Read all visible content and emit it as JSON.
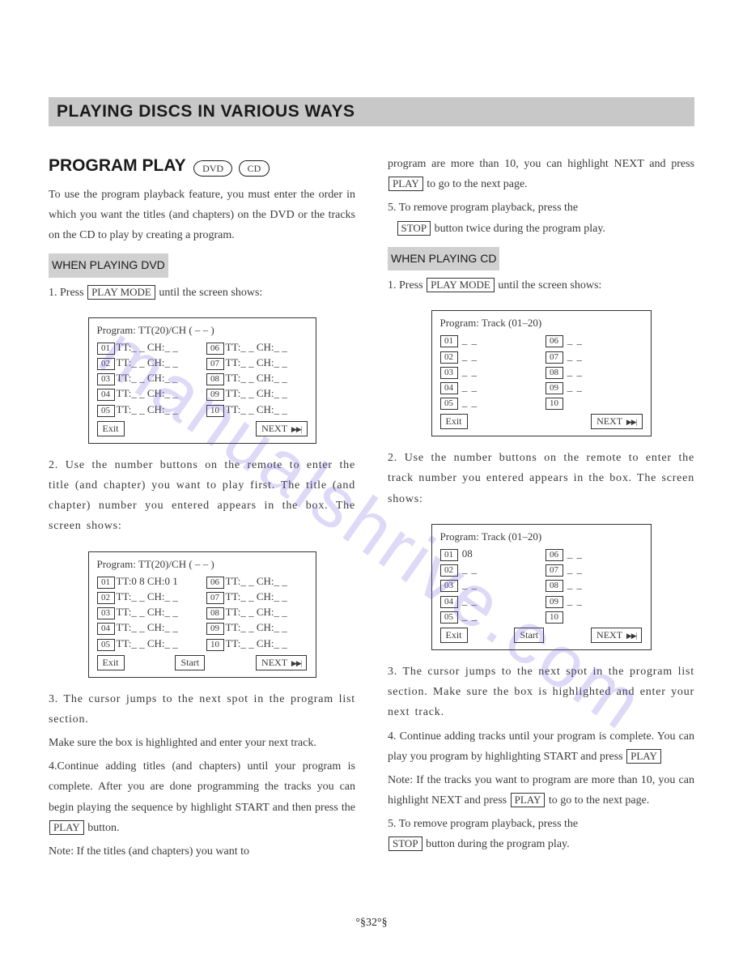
{
  "titleBar": "PLAYING DISCS IN VARIOUS WAYS",
  "sectionTitle": "PROGRAM PLAY",
  "badges": {
    "dvd": "DVD",
    "cd": "CD"
  },
  "left": {
    "intro": "To use the program playback feature, you must enter the order in which you want the titles (and chapters) on the DVD or the tracks on the CD to play by creating a program.",
    "sub": "WHEN PLAYING DVD",
    "step1a": "1. Press",
    "key_playmode": "PLAY MODE",
    "step1b": "until the screen shows:",
    "screen1": {
      "header": "Program: TT(20)/CH ( – – )",
      "row_l": [
        "01",
        "02",
        "03",
        "04",
        "05"
      ],
      "row_r": [
        "06",
        "07",
        "08",
        "09",
        "10"
      ],
      "cell_text": "TT:_ _  CH:_ _",
      "btn_exit": "Exit",
      "btn_next": "NEXT "
    },
    "step2": "2. Use the number buttons on the remote to enter the title (and chapter) you want to play first. The title (and chapter) number you entered appears in the box. The screen shows:",
    "screen2": {
      "header": "Program: TT(20)/CH ( – – )",
      "row_l": [
        "01",
        "02",
        "03",
        "04",
        "05"
      ],
      "row_r": [
        "06",
        "07",
        "08",
        "09",
        "10"
      ],
      "first_cell": "TT:0 8  CH:0 1",
      "cell_text": "TT:_ _  CH:_ _",
      "btn_exit": "Exit",
      "btn_start": "Start",
      "btn_next": "NEXT "
    },
    "step3": "3. The cursor jumps to the next spot in the program list section.",
    "step3b": "Make sure the box is highlighted and enter your next track.",
    "step4": "4.Continue adding titles (and chapters) until your program is complete. After you are done programming the tracks you can begin playing the sequence by highlight START and then press the",
    "key_play": "PLAY",
    "step4b": "button.",
    "note": "Note: If the titles (and chapters) you want to"
  },
  "right": {
    "cont1a": "program are more than 10, you can highlight NEXT and press",
    "key_play": "PLAY",
    "cont1b": "to go to the next page.",
    "step5": "5. To remove program playback, press the",
    "key_stop": "STOP",
    "step5b": "button twice during the program play.",
    "sub": "WHEN PLAYING CD",
    "step1a": "1. Press",
    "key_playmode": "PLAY MODE",
    "step1b": "until the screen shows:",
    "screen1": {
      "header": "Program: Track (01–20)",
      "row_l": [
        "01",
        "02",
        "03",
        "04",
        "05"
      ],
      "row_r": [
        "06",
        "07",
        "08",
        "09",
        "10"
      ],
      "dash": "_ _",
      "btn_exit": "Exit",
      "btn_next": "NEXT "
    },
    "step2": "2. Use the number buttons on the remote to enter the track number you entered appears in the box. The screen shows:",
    "screen2": {
      "header": "Program: Track (01–20)",
      "row_l": [
        "01",
        "02",
        "03",
        "04",
        "05"
      ],
      "row_r": [
        "06",
        "07",
        "08",
        "09",
        "10"
      ],
      "first_val": "08",
      "dash": "_ _",
      "btn_exit": "Exit",
      "btn_start": "Start",
      "btn_next": "NEXT "
    },
    "step3": "3. The cursor jumps to the next spot in the program list section. Make sure the box is highlighted and enter your next track.",
    "step4a": "4. Continue adding tracks until your program is complete. You can play you program by highlighting START and press",
    "step4note": "Note: If the tracks you want to program are more than 10, you can highlight NEXT and press",
    "step4b": "to go to the next page.",
    "step5a": "5. To remove program playback, press the",
    "step5c": "button during the program play."
  },
  "footer": "°§32°§",
  "watermark": "manualshrive.com"
}
